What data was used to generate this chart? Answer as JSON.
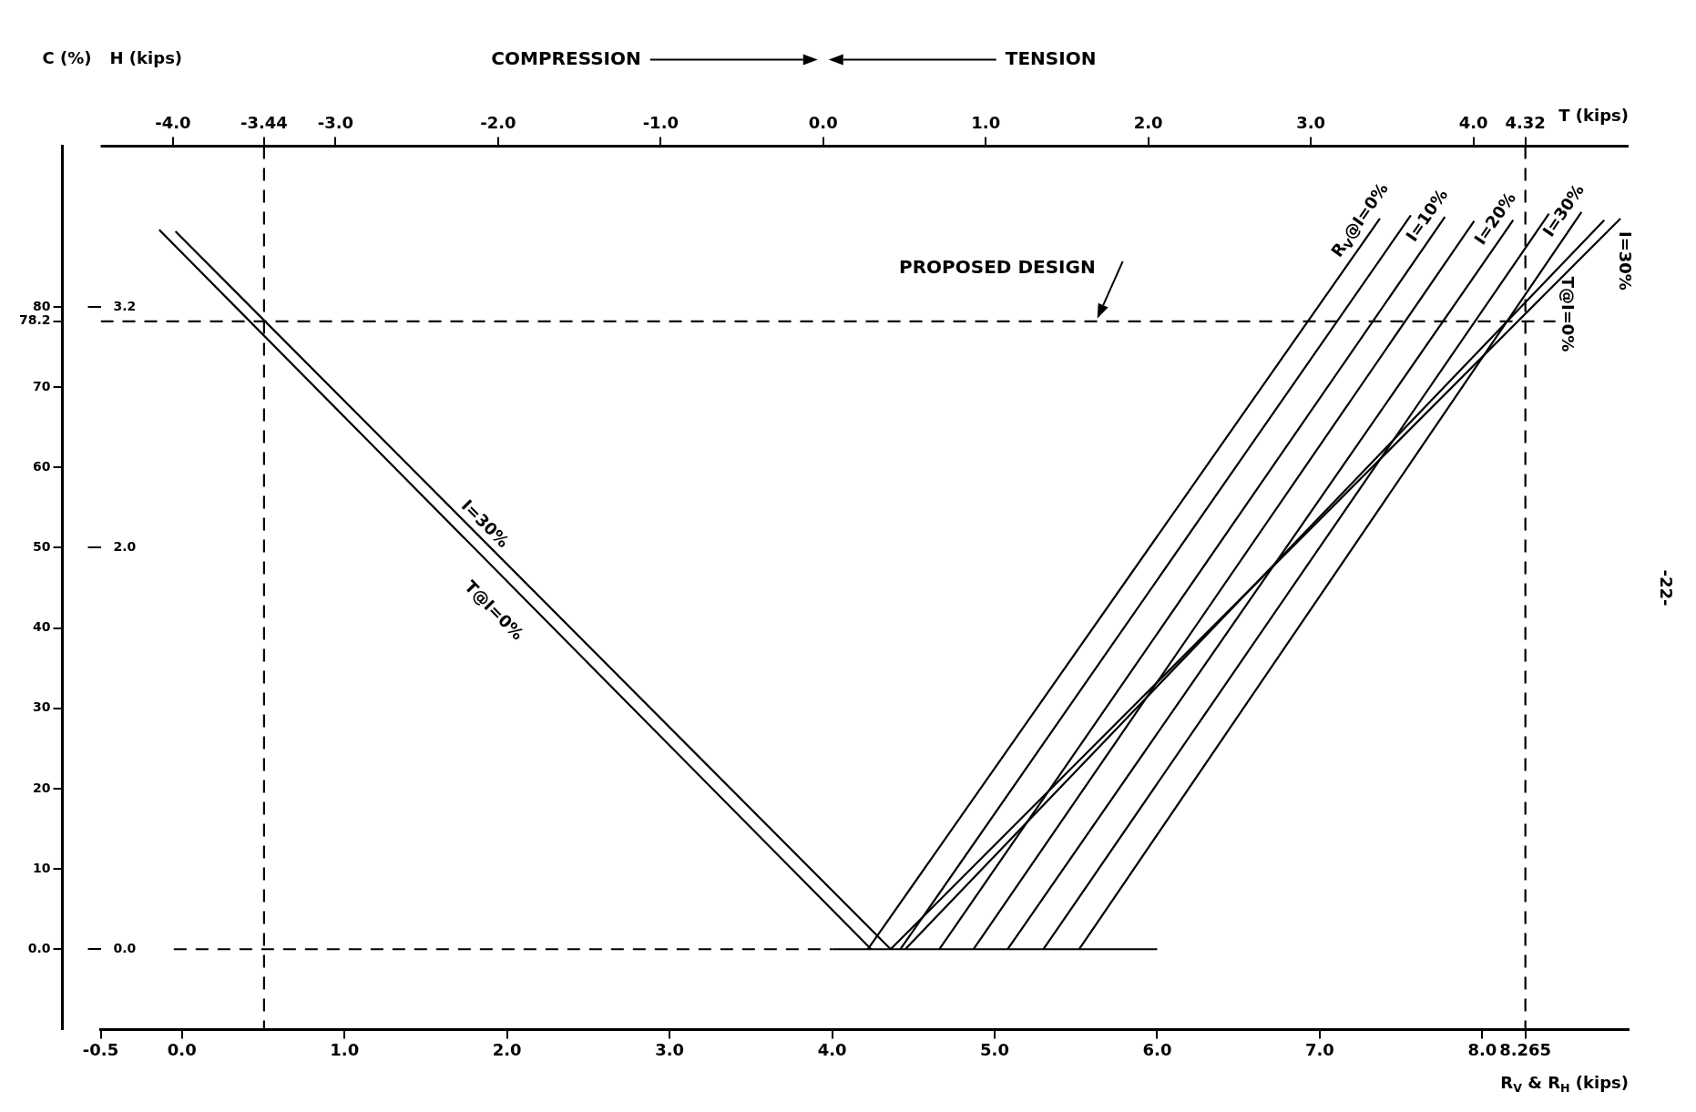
{
  "chart_data": {
    "type": "line",
    "xlabel": "R$_{V}$ & R$_{H}$ (kips)",
    "x2label": "T (kips)",
    "ylabel": "C (%)",
    "y2label": "H (kips)",
    "xlim": [
      -0.5,
      8.9
    ],
    "xticks": [
      -0.5,
      {
        "value": 0,
        "label": "0.0"
      },
      {
        "value": 1,
        "label": "1.0"
      },
      {
        "value": 2,
        "label": "2.0"
      },
      {
        "value": 3,
        "label": "3.0"
      },
      {
        "value": 4,
        "label": "4.0"
      },
      {
        "value": 5,
        "label": "5.0"
      },
      {
        "value": 6,
        "label": "6.0"
      },
      {
        "value": 7,
        "label": "7.0"
      },
      {
        "value": 8,
        "label": "8.0"
      },
      8.265
    ],
    "x2lim": [
      -4.445,
      4.955
    ],
    "x2ticks": [
      {
        "value": -4,
        "label": "-4.0"
      },
      -3.44,
      {
        "value": -3,
        "label": "-3.0"
      },
      {
        "value": -2,
        "label": "-2.0"
      },
      {
        "value": -1,
        "label": "-1.0"
      },
      {
        "value": 0,
        "label": "0.0"
      },
      {
        "value": 1,
        "label": "1.0"
      },
      {
        "value": 2,
        "label": "2.0"
      },
      {
        "value": 3,
        "label": "3.0"
      },
      {
        "value": 4,
        "label": "4.0"
      },
      4.32
    ],
    "ylim": [
      -10,
      100
    ],
    "yticks": [
      {
        "value": 0,
        "label": "0.0"
      },
      10,
      20,
      30,
      40,
      50,
      60,
      70,
      78.2,
      80
    ],
    "y2lim": [
      -0.4,
      4.0
    ],
    "y2ticks": [
      {
        "value": 0,
        "label": "0.0"
      },
      {
        "value": 2,
        "label": "2.0"
      },
      3.2
    ],
    "marker": "none",
    "series": [
      {
        "name": "T@I=0%",
        "color": "#000000",
        "x": [
          -0.14,
          4.24
        ],
        "values": [
          89.6,
          0
        ]
      },
      {
        "name": "I=30%",
        "color": "#000000",
        "x": [
          -0.04,
          4.36
        ],
        "values": [
          89.4,
          0
        ]
      },
      {
        "name": "R$_{V}$@I=0%",
        "color": "#000000",
        "x": [
          4.22,
          7.37
        ],
        "values": [
          0,
          91.0
        ]
      },
      {
        "color": "#000000",
        "x": [
          4.42,
          7.56
        ],
        "values": [
          0,
          91.4
        ]
      },
      {
        "name": "I=10%",
        "color": "#000000",
        "x": [
          4.66,
          7.77
        ],
        "values": [
          0,
          91.2
        ]
      },
      {
        "color": "#000000",
        "x": [
          4.87,
          7.95
        ],
        "values": [
          0,
          90.7
        ]
      },
      {
        "name": "I=20%",
        "color": "#000000",
        "x": [
          5.08,
          8.19
        ],
        "values": [
          0,
          90.8
        ]
      },
      {
        "color": "#000000",
        "x": [
          5.3,
          8.41
        ],
        "values": [
          0,
          91.6
        ]
      },
      {
        "name": "I=30%",
        "color": "#000000",
        "x": [
          5.52,
          8.61
        ],
        "values": [
          0,
          91.8
        ]
      },
      {
        "name": "T@I=0%",
        "color": "#000000",
        "x": [
          4.45,
          8.75
        ],
        "values": [
          0,
          90.8
        ]
      },
      {
        "name": "I=30%",
        "color": "#000000",
        "x": [
          4.36,
          8.85
        ],
        "values": [
          0,
          91.0
        ]
      },
      {
        "color": "#000000",
        "x": [
          4.0,
          6.0
        ],
        "values": [
          0,
          0
        ]
      },
      {
        "color": "#000000",
        "x": [
          -0.5,
          8.45
        ],
        "values": [
          78.2,
          78.2
        ],
        "line_style": "dashed"
      },
      {
        "color": "#000000",
        "x": [
          -0.05,
          4.0
        ],
        "values": [
          0,
          0
        ],
        "line_style": "dashed"
      }
    ],
    "ref_lines": [
      {
        "axis": "x",
        "value": 8.265,
        "color": "#000000",
        "line_style": "dashed"
      },
      {
        "axis": "x2",
        "value": -3.44,
        "color": "#000000",
        "line_style": "dashed"
      },
      {
        "axis": "y",
        "value": 100,
        "color": "#000000",
        "line_style": "solid"
      }
    ],
    "annotations": [
      "COMPRESSION",
      "TENSION",
      "-22-",
      {
        "text": "PROPOSED DESIGN",
        "x": 5.62,
        "y": 78.2
      }
    ]
  }
}
